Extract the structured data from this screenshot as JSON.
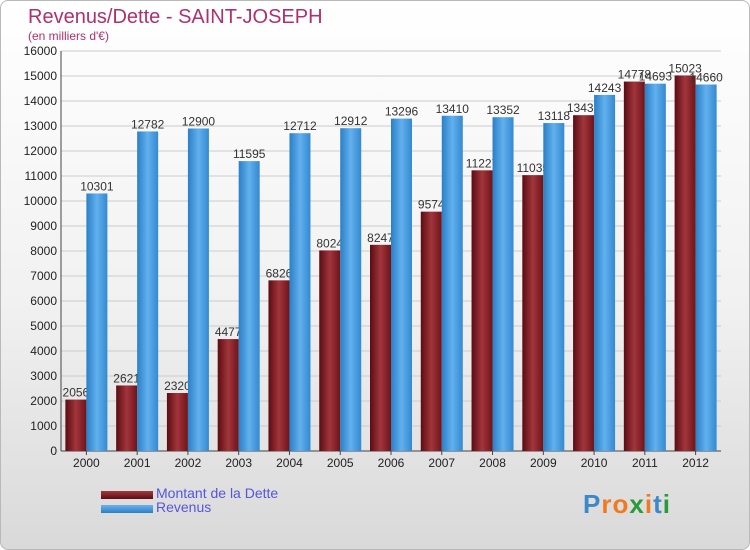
{
  "header": {
    "title": "Revenus/Dette - SAINT-JOSEPH",
    "subtitle": "(en milliers d'€)"
  },
  "legend": {
    "debt_label": "Montant de la Dette",
    "revenue_label": "Revenus"
  },
  "brand": {
    "letters": [
      "P",
      "r",
      "o",
      "x",
      "i",
      "t",
      "i"
    ],
    "letter_colors": [
      "#3d88c8",
      "#f07a20",
      "#f07a20",
      "#2a9a3a",
      "#f07a20",
      "#3d88c8",
      "#2a9a3a"
    ]
  },
  "colors": {
    "debt": "#7a1f24",
    "revenue": "#3d94dc",
    "title": "#b0306e",
    "legend_text": "#5555dd"
  },
  "chart_data": {
    "type": "bar",
    "categories": [
      "2000",
      "2001",
      "2002",
      "2003",
      "2004",
      "2005",
      "2006",
      "2007",
      "2008",
      "2009",
      "2010",
      "2011",
      "2012"
    ],
    "series": [
      {
        "name": "Montant de la Dette",
        "values": [
          2056,
          2621,
          2320,
          4477,
          6826,
          8024,
          8247,
          9574,
          11227,
          11035,
          13433,
          14778,
          15023
        ]
      },
      {
        "name": "Revenus",
        "values": [
          10301,
          12782,
          12900,
          11595,
          12712,
          12912,
          13296,
          13410,
          13352,
          13118,
          14243,
          14693,
          14660
        ]
      }
    ],
    "title": "Revenus/Dette - SAINT-JOSEPH",
    "ylabel": "(en milliers d'€)",
    "ylim": [
      0,
      16000
    ],
    "yticks": [
      0,
      1000,
      2000,
      3000,
      4000,
      5000,
      6000,
      7000,
      8000,
      9000,
      10000,
      11000,
      12000,
      13000,
      14000,
      15000,
      16000
    ],
    "grid": true,
    "legend_position": "bottom-left"
  }
}
